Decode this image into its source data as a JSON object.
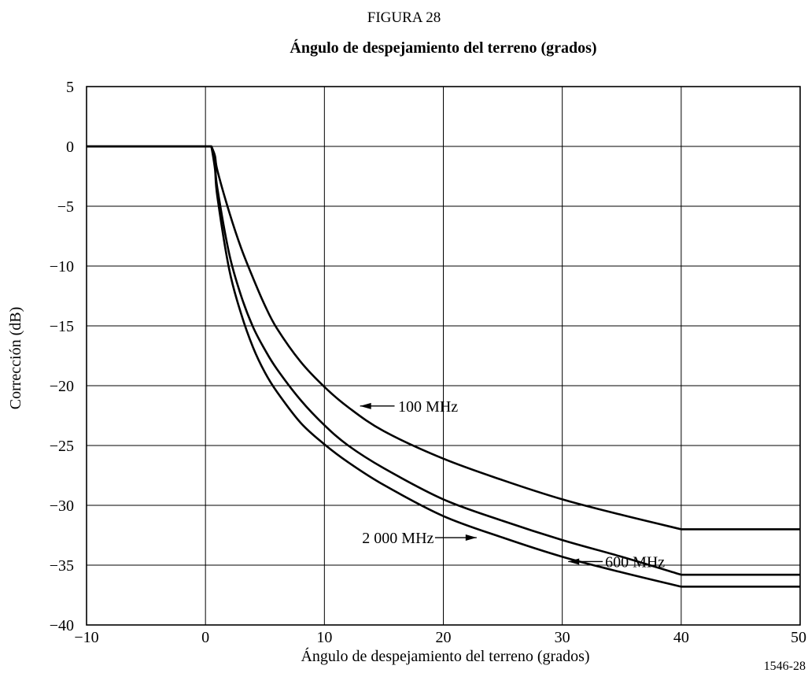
{
  "figure": {
    "label": "FIGURA 28",
    "title": "Ángulo de despejamiento del terreno (grados)",
    "code": "1546-28"
  },
  "chart_data": {
    "type": "line",
    "title": "Ángulo de despejamiento del terreno (grados)",
    "xlabel": "Ángulo de despejamiento del terreno (grados)",
    "ylabel": "Corrección (dB)",
    "xlim": [
      -10,
      50
    ],
    "ylim": [
      -40,
      5
    ],
    "grid": true,
    "xticks": [
      -10,
      0,
      10,
      20,
      30,
      40,
      50
    ],
    "yticks": [
      5,
      0,
      -5,
      -10,
      -15,
      -20,
      -25,
      -30,
      -35,
      -40
    ],
    "xtick_labels": [
      "−10",
      "0",
      "10",
      "20",
      "30",
      "40",
      "50"
    ],
    "ytick_labels": [
      "5",
      "0",
      "−5",
      "−10",
      "−15",
      "−20",
      "−25",
      "−30",
      "−35",
      "−40"
    ],
    "series": [
      {
        "name": "100 MHz",
        "color": "#000000",
        "x": [
          -10,
          0.5,
          0.8,
          1,
          2,
          3,
          4,
          5,
          6,
          8,
          10,
          12,
          15,
          20,
          25,
          30,
          35,
          40,
          50
        ],
        "y": [
          0,
          0,
          -0.8,
          -2,
          -5.5,
          -8.5,
          -11,
          -13.3,
          -15.2,
          -18,
          -20.1,
          -21.8,
          -23.8,
          -26.1,
          -27.9,
          -29.5,
          -30.8,
          -32,
          -32
        ]
      },
      {
        "name": "600 MHz",
        "color": "#000000",
        "x": [
          -10,
          0.5,
          0.8,
          1,
          2,
          3,
          4,
          5,
          6,
          8,
          10,
          12,
          15,
          20,
          25,
          30,
          35,
          40,
          50
        ],
        "y": [
          0,
          0,
          -1.6,
          -3.5,
          -9,
          -12.5,
          -15.1,
          -17,
          -18.6,
          -21.2,
          -23.3,
          -25,
          -26.9,
          -29.5,
          -31.3,
          -32.9,
          -34.3,
          -35.8,
          -35.8
        ]
      },
      {
        "name": "2 000 MHz",
        "color": "#000000",
        "x": [
          -10,
          0.5,
          0.8,
          1,
          2,
          3,
          4,
          5,
          6,
          8,
          10,
          12,
          15,
          20,
          25,
          30,
          35,
          40,
          50
        ],
        "y": [
          0,
          0,
          -1.9,
          -4.2,
          -10.3,
          -14,
          -16.8,
          -18.9,
          -20.5,
          -23.1,
          -24.9,
          -26.4,
          -28.3,
          -30.9,
          -32.7,
          -34.3,
          -35.6,
          -36.8,
          -36.8
        ]
      }
    ],
    "annotations": [
      {
        "text": "100 MHz",
        "series": "100 MHz",
        "arrow_to": [
          13,
          -21.7
        ]
      },
      {
        "text": "600 MHz",
        "series": "600 MHz",
        "arrow_to": [
          30.5,
          -34.7
        ]
      },
      {
        "text": "2 000 MHz",
        "series": "2 000 MHz",
        "arrow_to": [
          22.8,
          -32.7
        ]
      }
    ]
  }
}
